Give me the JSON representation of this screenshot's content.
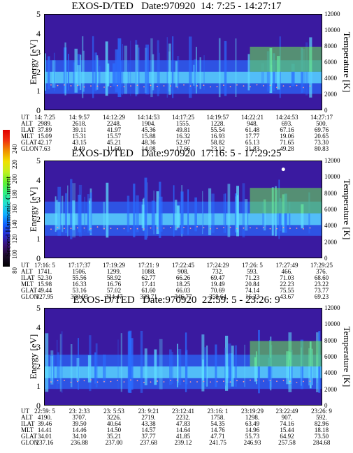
{
  "colors": {
    "bg_dark": "#3a1aa0",
    "band_blue": "#2a6cff",
    "band_cyan": "#5fe0ff",
    "band_green": "#6cf050",
    "hot_spot": "#ffffff"
  },
  "colorbar": {
    "label": "Second Harmonic Current",
    "ticks": [
      "240",
      "220",
      "200",
      "180",
      "160",
      "140",
      "120",
      "100",
      "80"
    ],
    "colors": [
      "#000000",
      "#1a0a2a",
      "#3a1070",
      "#2a2ad0",
      "#1060ff",
      "#10b0ff",
      "#20e0d0",
      "#30f080",
      "#60f030",
      "#c0f020",
      "#f0e000",
      "#f09000",
      "#f03010",
      "#e00000"
    ]
  },
  "axes": {
    "energy_label": "Energy [eV]",
    "temp_label": "Temperature [K]",
    "energy_ticks": [
      "5",
      "4",
      "3",
      "2",
      "1",
      "0"
    ],
    "temp_ticks": [
      "12000",
      "10000",
      "8000",
      "6000",
      "4000",
      "2000",
      "0"
    ]
  },
  "panels": [
    {
      "title": "EXOS-D/TED   Date:970920  14: 7:25 - 14:27:17",
      "ephem": {
        "labels": [
          "UT",
          "ALT",
          "ILAT",
          "MLT",
          "GLAT",
          "GLON"
        ],
        "columns": [
          [
            "14: 7:25",
            "2989.",
            "37.89",
            "15.09",
            "42.17",
            "7.63"
          ],
          [
            "14: 9:57",
            "2618.",
            "39.11",
            "15.31",
            "43.15",
            "9.49"
          ],
          [
            "14:12:29",
            "2248.",
            "41.97",
            "15.57",
            "45.21",
            "11.60"
          ],
          [
            "14:14:53",
            "1904.",
            "45.36",
            "15.88",
            "48.36",
            "14.08"
          ],
          [
            "14:17:25",
            "1555.",
            "49.81",
            "16.32",
            "52.97",
            "17.66"
          ],
          [
            "14:19:57",
            "1228.",
            "55.54",
            "16.93",
            "58.82",
            "23.12"
          ],
          [
            "14:22:21",
            "948.",
            "61.48",
            "17.77",
            "65.13",
            "31.83"
          ],
          [
            "14:24:53",
            "693.",
            "67.16",
            "19.06",
            "71.65",
            "49.28"
          ],
          [
            "14:27:17",
            "500.",
            "69.76",
            "20.65",
            "73.30",
            "80.83"
          ]
        ]
      }
    },
    {
      "title": "EXOS-D/TED   Date:970920  17:16: 5 - 17:29:25",
      "ephem": {
        "labels": [
          "UT",
          "ALT",
          "ILAT",
          "MLT",
          "GLAT",
          "GLON"
        ],
        "columns": [
          [
            "17:16: 5",
            "1741.",
            "52.30",
            "15.98",
            "49.44",
            "327.95"
          ],
          [
            "17:17:37",
            "1506.",
            "55.56",
            "16.33",
            "53.16",
            "330.93"
          ],
          [
            "17:19:29",
            "1299.",
            "58.92",
            "16.76",
            "57.02",
            "334.47"
          ],
          [
            "17:21: 9",
            "1088.",
            "62.77",
            "17.41",
            "61.60",
            "339.71"
          ],
          [
            "17:22:45",
            "908.",
            "66.26",
            "18.25",
            "66.03",
            "346.77"
          ],
          [
            "17:24:29",
            "732.",
            "69.47",
            "19.49",
            "70.69",
            "358.64"
          ],
          [
            "17:26: 5",
            "593.",
            "71.23",
            "20.84",
            "74.14",
            "16.33"
          ],
          [
            "17:27:49",
            "466.",
            "71.03",
            "22.23",
            "75.55",
            "43.67"
          ],
          [
            "17:29:25",
            "376.",
            "68.60",
            "23.22",
            "73.77",
            "69.23"
          ]
        ]
      }
    },
    {
      "title": "EXOS-D/TED   Date:970920  22:59: 5 - 23:26: 9",
      "ephem": {
        "labels": [
          "UT",
          "ALT",
          "ILAT",
          "MLT",
          "GLAT",
          "GLON"
        ],
        "columns": [
          [
            "22:59: 5",
            "4190.",
            "39.46",
            "14.41",
            "34.01",
            "237.16"
          ],
          [
            "23: 2:33",
            "3707.",
            "39.50",
            "14.46",
            "34.10",
            "236.88"
          ],
          [
            "23: 5:53",
            "3226.",
            "40.64",
            "14.50",
            "35.21",
            "237.00"
          ],
          [
            "23: 9:21",
            "2719.",
            "43.38",
            "14.57",
            "37.77",
            "237.68"
          ],
          [
            "23:12:41",
            "2232.",
            "47.83",
            "14.64",
            "41.85",
            "239.12"
          ],
          [
            "23:16: 1",
            "1758.",
            "54.35",
            "14.76",
            "47.71",
            "241.75"
          ],
          [
            "23:19:29",
            "1298.",
            "63.49",
            "14.96",
            "55.73",
            "246.93"
          ],
          [
            "23:22:49",
            "907.",
            "74.16",
            "15.44",
            "64.92",
            "257.58"
          ],
          [
            "23:26: 9",
            "592.",
            "82.96",
            "18.18",
            "73.50",
            "284.68"
          ]
        ]
      }
    }
  ]
}
